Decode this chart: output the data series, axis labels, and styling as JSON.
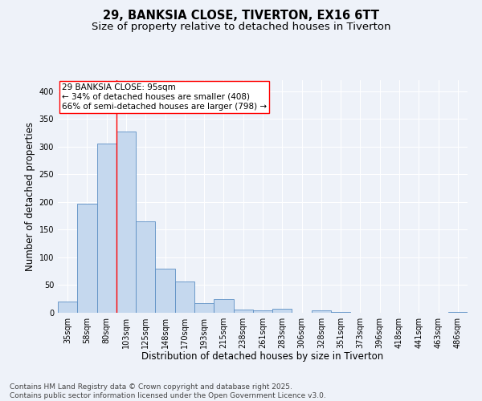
{
  "title_line1": "29, BANKSIA CLOSE, TIVERTON, EX16 6TT",
  "title_line2": "Size of property relative to detached houses in Tiverton",
  "xlabel": "Distribution of detached houses by size in Tiverton",
  "ylabel": "Number of detached properties",
  "bar_color": "#c5d8ee",
  "bar_edge_color": "#5b8ec4",
  "categories": [
    "35sqm",
    "58sqm",
    "80sqm",
    "103sqm",
    "125sqm",
    "148sqm",
    "170sqm",
    "193sqm",
    "215sqm",
    "238sqm",
    "261sqm",
    "283sqm",
    "306sqm",
    "328sqm",
    "351sqm",
    "373sqm",
    "396sqm",
    "418sqm",
    "441sqm",
    "463sqm",
    "486sqm"
  ],
  "values": [
    20,
    197,
    305,
    328,
    165,
    80,
    57,
    18,
    25,
    6,
    5,
    7,
    0,
    5,
    2,
    0,
    0,
    0,
    0,
    0,
    2
  ],
  "ylim": [
    0,
    420
  ],
  "yticks": [
    0,
    50,
    100,
    150,
    200,
    250,
    300,
    350,
    400
  ],
  "red_line_x": 2.5,
  "annotation_text": "29 BANKSIA CLOSE: 95sqm\n← 34% of detached houses are smaller (408)\n66% of semi-detached houses are larger (798) →",
  "footer_line1": "Contains HM Land Registry data © Crown copyright and database right 2025.",
  "footer_line2": "Contains public sector information licensed under the Open Government Licence v3.0.",
  "background_color": "#eef2f9",
  "grid_color": "#ffffff",
  "title_fontsize": 10.5,
  "subtitle_fontsize": 9.5,
  "axis_label_fontsize": 8.5,
  "tick_fontsize": 7,
  "annotation_fontsize": 7.5,
  "footer_fontsize": 6.5
}
